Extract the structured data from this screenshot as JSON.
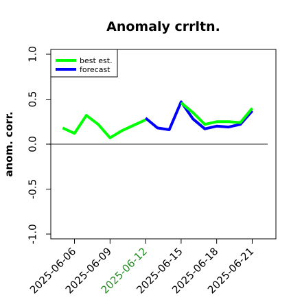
{
  "chart_data": {
    "type": "line",
    "title": "Anomaly crrltn.",
    "xlabel": "",
    "ylabel": "anom. corr.",
    "ylim": [
      -1.0,
      1.0
    ],
    "yticks": [
      "-1.0",
      "-0.5",
      "0.0",
      "0.5",
      "1.0"
    ],
    "xlim": [
      "2025-06-04",
      "2025-06-23"
    ],
    "xticks": [
      "2025-06-06",
      "2025-06-09",
      "2025-06-12",
      "2025-06-15",
      "2025-06-18",
      "2025-06-21"
    ],
    "highlight_tick": "2025-06-12",
    "highlight_color": "#228b22",
    "grid": false,
    "legend_position": "top-left",
    "reference_line": 0.0,
    "reference_color": "#555555",
    "x": [
      "2025-06-05",
      "2025-06-06",
      "2025-06-07",
      "2025-06-08",
      "2025-06-09",
      "2025-06-10",
      "2025-06-11",
      "2025-06-12",
      "2025-06-13",
      "2025-06-14",
      "2025-06-15",
      "2025-06-16",
      "2025-06-17",
      "2025-06-18",
      "2025-06-19",
      "2025-06-20",
      "2025-06-21"
    ],
    "series": [
      {
        "name": "forecast",
        "color": "#0000ff",
        "values": [
          null,
          null,
          null,
          null,
          null,
          null,
          null,
          0.29,
          0.18,
          0.16,
          0.47,
          0.28,
          0.17,
          0.2,
          0.19,
          0.22,
          0.37
        ]
      },
      {
        "name": "best est.",
        "color": "#00ff00",
        "values": [
          0.18,
          0.12,
          0.32,
          0.22,
          0.07,
          0.15,
          0.21,
          0.27,
          null,
          null,
          0.46,
          0.35,
          0.22,
          0.25,
          0.25,
          0.24,
          0.4
        ]
      }
    ]
  }
}
